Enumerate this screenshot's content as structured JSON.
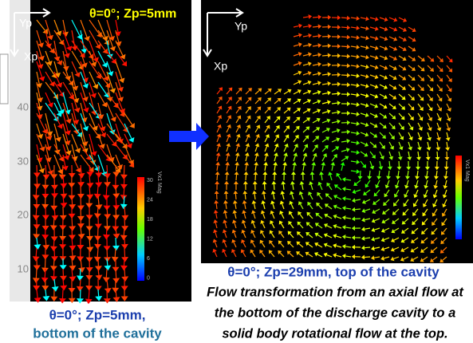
{
  "left_panel": {
    "label": "θ=0°; Zp=5mm",
    "axis_y": "Yp",
    "axis_x": "Xp",
    "ticks": [
      40,
      30,
      20,
      10
    ],
    "colorbar_title": "Vx1 Mag",
    "colorbar_ticks": [
      30,
      24,
      18,
      12,
      6,
      0
    ],
    "caption_line1": "θ=0°; Zp=5mm,",
    "caption_line2": "bottom of the cavity"
  },
  "right_panel": {
    "axis_y": "Yp",
    "axis_x": "Xp",
    "colorbar_title": "Vx1 Mag",
    "caption": "θ=0°; Zp=29mm, top of the cavity"
  },
  "description": [
    "Flow transformation from an axial flow at",
    "the bottom of the discharge cavity to a",
    "solid body rotational flow at the top."
  ]
}
